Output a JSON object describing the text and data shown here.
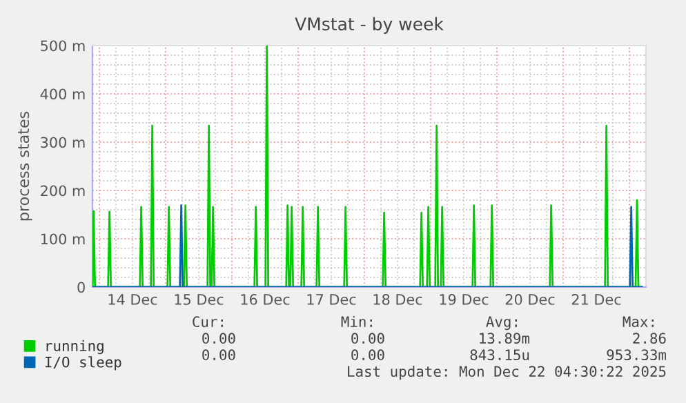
{
  "chart_data": {
    "type": "line",
    "title": "VMstat - by week",
    "ylabel": "process states",
    "xlim": [
      "2025-12-13T21:30",
      "2025-12-22T06:00"
    ],
    "xticks": [
      {
        "value": "2025-12-14T12:00",
        "label": "14 Dec"
      },
      {
        "value": "2025-12-15T12:00",
        "label": "15 Dec"
      },
      {
        "value": "2025-12-16T12:00",
        "label": "16 Dec"
      },
      {
        "value": "2025-12-17T12:00",
        "label": "17 Dec"
      },
      {
        "value": "2025-12-18T12:00",
        "label": "18 Dec"
      },
      {
        "value": "2025-12-19T12:00",
        "label": "19 Dec"
      },
      {
        "value": "2025-12-20T12:00",
        "label": "20 Dec"
      },
      {
        "value": "2025-12-21T12:00",
        "label": "21 Dec"
      }
    ],
    "ylim": [
      0,
      500
    ],
    "yticks": [
      {
        "value": 0,
        "label": "0"
      },
      {
        "value": 100,
        "label": "100 m"
      },
      {
        "value": 200,
        "label": "200 m"
      },
      {
        "value": 300,
        "label": "300 m"
      },
      {
        "value": 400,
        "label": "400 m"
      },
      {
        "value": 500,
        "label": "500 m"
      }
    ],
    "grid": true,
    "legend": "bottom",
    "marker": "none",
    "line_style": "solid",
    "series": [
      {
        "name": "running",
        "color": "#00cc00",
        "x": [
          "2025-12-13T21:35",
          "2025-12-13T21:55",
          "2025-12-13T22:25",
          "2025-12-14T03:10",
          "2025-12-14T03:40",
          "2025-12-14T04:10",
          "2025-12-14T14:40",
          "2025-12-14T15:10",
          "2025-12-14T15:40",
          "2025-12-14T18:40",
          "2025-12-14T19:10",
          "2025-12-14T19:40",
          "2025-12-15T00:40",
          "2025-12-15T01:10",
          "2025-12-15T01:40",
          "2025-12-15T06:40",
          "2025-12-15T07:10",
          "2025-12-15T07:40",
          "2025-12-15T15:10",
          "2025-12-15T15:40",
          "2025-12-15T16:10",
          "2025-12-15T16:40",
          "2025-12-15T17:10",
          "2025-12-15T17:40",
          "2025-12-16T08:10",
          "2025-12-16T08:40",
          "2025-12-16T09:10",
          "2025-12-16T12:10",
          "2025-12-16T12:40",
          "2025-12-16T13:10",
          "2025-12-16T19:40",
          "2025-12-16T20:10",
          "2025-12-16T20:40",
          "2025-12-16T21:10",
          "2025-12-16T21:40",
          "2025-12-16T22:10",
          "2025-12-17T01:10",
          "2025-12-17T01:40",
          "2025-12-17T02:10",
          "2025-12-17T06:40",
          "2025-12-17T07:10",
          "2025-12-17T07:40",
          "2025-12-17T16:40",
          "2025-12-17T17:10",
          "2025-12-17T17:40",
          "2025-12-18T06:40",
          "2025-12-18T07:10",
          "2025-12-18T07:40",
          "2025-12-18T20:10",
          "2025-12-18T20:40",
          "2025-12-18T21:10",
          "2025-12-18T22:40",
          "2025-12-18T23:10",
          "2025-12-18T23:40",
          "2025-12-19T01:40",
          "2025-12-19T02:10",
          "2025-12-19T02:40",
          "2025-12-19T03:40",
          "2025-12-19T04:10",
          "2025-12-19T04:40",
          "2025-12-19T15:10",
          "2025-12-19T15:40",
          "2025-12-19T16:10",
          "2025-12-19T21:40",
          "2025-12-19T22:10",
          "2025-12-19T22:40",
          "2025-12-20T19:10",
          "2025-12-20T19:40",
          "2025-12-20T20:10",
          "2025-12-21T15:10",
          "2025-12-21T15:40",
          "2025-12-21T16:10",
          "2025-12-22T02:15",
          "2025-12-22T02:45",
          "2025-12-22T03:15",
          "2025-12-22T04:30"
        ],
        "values": [
          0,
          157,
          0,
          0,
          156,
          0,
          0,
          166,
          0,
          0,
          334,
          0,
          0,
          166,
          0,
          0,
          169,
          0,
          0,
          334,
          0,
          0,
          166,
          0,
          0,
          166,
          0,
          0,
          500,
          0,
          0,
          169,
          0,
          0,
          166,
          0,
          0,
          166,
          0,
          0,
          166,
          0,
          0,
          166,
          0,
          0,
          154,
          0,
          0,
          154,
          0,
          0,
          166,
          0,
          0,
          334,
          0,
          0,
          166,
          0,
          0,
          169,
          0,
          0,
          169,
          0,
          0,
          169,
          0,
          0,
          334,
          0,
          0,
          180,
          0,
          0
        ]
      },
      {
        "name": "I/O sleep",
        "color": "#0066b3",
        "x": [
          "2025-12-13T21:35",
          "2025-12-15T05:10",
          "2025-12-15T05:40",
          "2025-12-15T06:10",
          "2025-12-22T00:10",
          "2025-12-22T00:40",
          "2025-12-22T01:10",
          "2025-12-22T04:30"
        ],
        "values": [
          0,
          0,
          169,
          0,
          0,
          166,
          0,
          0
        ]
      }
    ],
    "annotations": [
      "Cur:",
      "Min:",
      "Avg:",
      "Max:",
      "0.00",
      "0.00",
      "13.89m",
      "2.86",
      "0.00",
      "0.00",
      "843.15u",
      "953.33m",
      "Last update: Mon Dec 22 04:30:22 2025"
    ]
  }
}
